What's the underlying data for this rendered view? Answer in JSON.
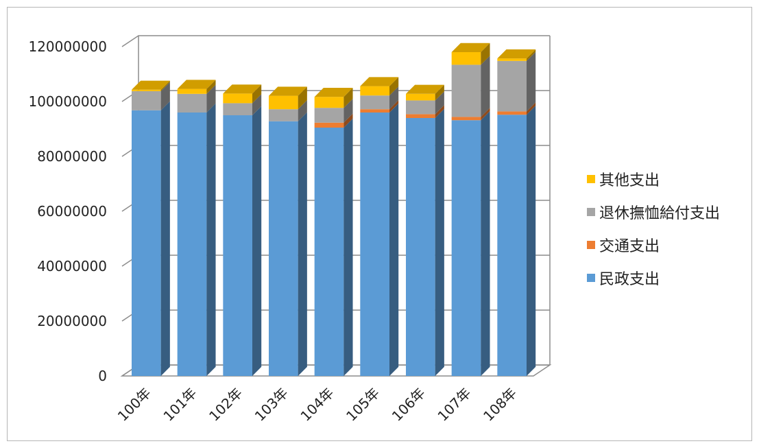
{
  "chart_data": {
    "type": "bar",
    "stacked": true,
    "three_d": true,
    "title": "",
    "xlabel": "",
    "ylabel": "",
    "ylim": [
      0,
      120000000
    ],
    "yticks": [
      "0",
      "20000000",
      "40000000",
      "60000000",
      "80000000",
      "100000000",
      "120000000"
    ],
    "categories": [
      "100年",
      "101年",
      "102年",
      "103年",
      "104年",
      "105年",
      "106年",
      "107年",
      "108年"
    ],
    "series": [
      {
        "name": "民政支出",
        "color": "#5b9bd5",
        "values": [
          96800000,
          96000000,
          95000000,
          92800000,
          90500000,
          96000000,
          94000000,
          93200000,
          95200000
        ]
      },
      {
        "name": "交通支出",
        "color": "#ed7d31",
        "values": [
          0,
          0,
          0,
          0,
          1800000,
          1200000,
          1400000,
          1200000,
          1200000
        ]
      },
      {
        "name": "退休撫恤給付支出",
        "color": "#a5a5a5",
        "values": [
          7000000,
          6800000,
          4400000,
          4400000,
          5400000,
          5000000,
          5000000,
          19000000,
          18400000
        ]
      },
      {
        "name": "其他支出",
        "color": "#ffc000",
        "values": [
          500000,
          1800000,
          3500000,
          4900000,
          4000000,
          3400000,
          2400000,
          4600000,
          900000
        ]
      }
    ],
    "grid": true,
    "legend_position": "right"
  }
}
